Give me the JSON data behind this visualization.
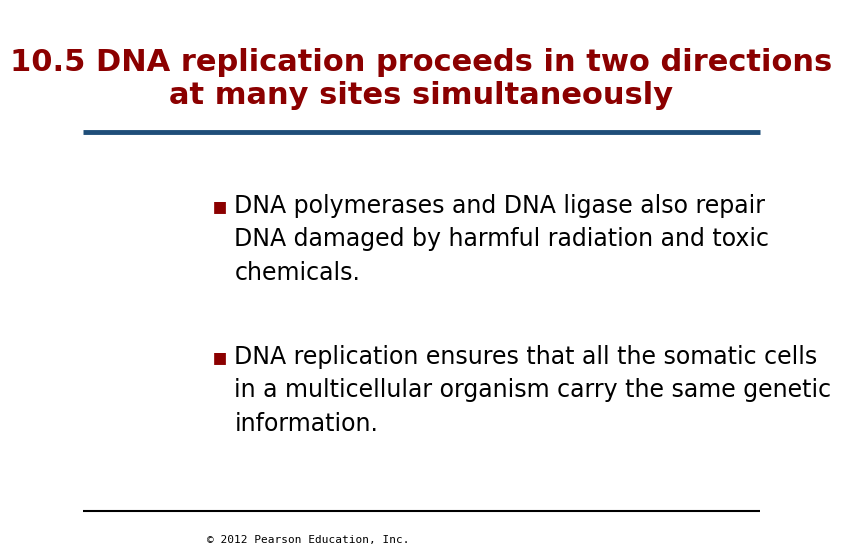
{
  "title_line1": "10.5 DNA replication proceeds in two directions",
  "title_line2": "at many sites simultaneously",
  "title_color": "#8B0000",
  "title_fontsize": 22,
  "title_bold": true,
  "separator_color_top": "#1F4E79",
  "separator_color_bottom": "#000000",
  "bullet_color": "#8B0000",
  "bullet_points": [
    "DNA polymerases and DNA ligase also repair\nDNA damaged by harmful radiation and toxic\nchemicals.",
    "DNA replication ensures that all the somatic cells\nin a multicellular organism carry the same genetic\ninformation."
  ],
  "bullet_fontsize": 17,
  "body_text_color": "#000000",
  "background_color": "#FFFFFF",
  "footer_text": "© 2012 Pearson Education, Inc.",
  "footer_fontsize": 8
}
